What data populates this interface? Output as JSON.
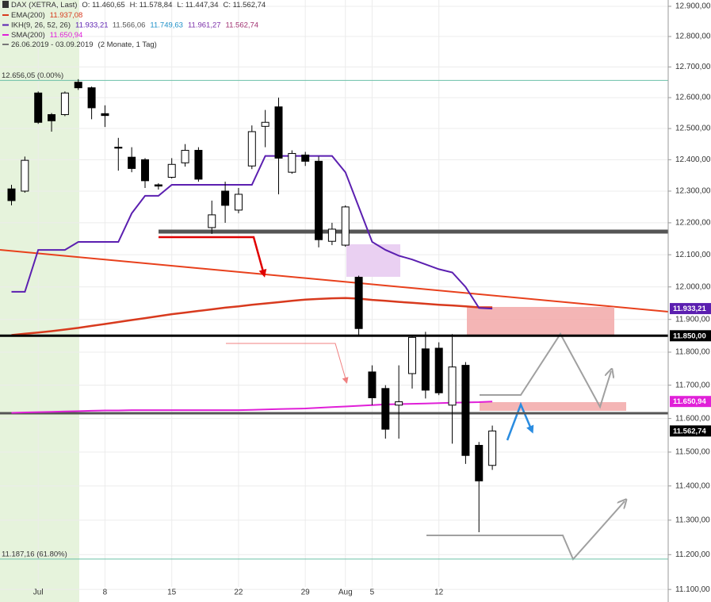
{
  "chart_data": {
    "type": "candlestick",
    "title": "DAX (XETRA, Last)",
    "quote": [
      "O: 11.460,65",
      "H: 11.578,84",
      "L: 11.447,34",
      "C: 11.562,74"
    ],
    "date_range": "26.06.2019 - 03.09.2019",
    "period": "(2 Monate, 1 Tag)",
    "log_scale": true,
    "grid": true,
    "up_color": "#ffffff",
    "down_color": "#000000",
    "categories": [
      null,
      null,
      "Jul",
      null,
      null,
      null,
      null,
      "8",
      null,
      null,
      null,
      null,
      "15",
      null,
      null,
      null,
      null,
      "22",
      null,
      null,
      null,
      null,
      "29",
      null,
      null,
      "Aug",
      null,
      "5",
      null,
      null,
      null,
      null,
      "12",
      null,
      null,
      null,
      null
    ],
    "open": [
      12307,
      12300,
      12615,
      12545,
      12545,
      12650,
      12632,
      12548,
      12440,
      12408,
      12400,
      12320,
      12344,
      12390,
      12430,
      12185,
      12300,
      12240,
      12380,
      12507,
      12570,
      12360,
      12415,
      12395,
      12142,
      12130,
      12030,
      11740,
      11690,
      11640,
      11735,
      11810,
      11812,
      11640,
      11760,
      11520,
      11460.65
    ],
    "high": [
      12320,
      12410,
      12620,
      12550,
      12620,
      12660,
      12636,
      12575,
      12470,
      12440,
      12405,
      12325,
      12405,
      12450,
      12440,
      12270,
      12330,
      12310,
      12510,
      12560,
      12600,
      12430,
      12425,
      12410,
      12200,
      12255,
      12035,
      11760,
      11700,
      11760,
      11850,
      11862,
      11830,
      11855,
      11770,
      11530,
      11578.84
    ],
    "low": [
      12255,
      12295,
      12515,
      12490,
      12540,
      12625,
      12530,
      12505,
      12365,
      12360,
      12310,
      12305,
      12340,
      12378,
      12330,
      12165,
      12200,
      12230,
      12370,
      12440,
      12290,
      12355,
      12380,
      12123,
      12130,
      12125,
      11850,
      11640,
      11540,
      11540,
      11690,
      11660,
      11670,
      11525,
      11465,
      11265,
      11447.34
    ],
    "close": [
      12270,
      12398,
      12520,
      12525,
      12615,
      12632,
      12567,
      12542,
      12437,
      12372,
      12333,
      12316,
      12385,
      12430,
      12338,
      12225,
      12255,
      12290,
      12490,
      12520,
      12405,
      12420,
      12395,
      12147,
      12180,
      12250,
      11872,
      11662,
      11568,
      11650,
      11845,
      11685,
      11677,
      11755,
      11490,
      11415,
      11562.74
    ],
    "series": [
      {
        "name": "EMA(200)",
        "color": "#d83a1e",
        "width": 2.5,
        "legend_values": [
          {
            "text": "11.937,08",
            "color": "#d83a1e"
          }
        ],
        "values": [
          11852,
          11856,
          11860,
          11864,
          11869,
          11874,
          11880,
          11886,
          11892,
          11898,
          11904,
          11910,
          11916,
          11921,
          11926,
          11931,
          11936,
          11940,
          11945,
          11949,
          11953,
          11957,
          11961,
          11963,
          11965,
          11966,
          11964,
          11960,
          11957,
          11954,
          11951,
          11948,
          11945,
          11943,
          11940,
          11937,
          11937.08
        ]
      },
      {
        "name": "IKH(9, 26, 52, 26)",
        "color": "#5b1fb0",
        "width": 2,
        "legend_values": [
          {
            "text": "11.933,21",
            "color": "#5b1fb0"
          },
          {
            "text": "11.566,06",
            "color": "#555555"
          },
          {
            "text": "11.749,63",
            "color": "#1e90c8"
          },
          {
            "text": "11.961,27",
            "color": "#7b2fa8"
          },
          {
            "text": "11.562,74",
            "color": "#a03070"
          }
        ],
        "values": [
          11985,
          11985,
          12115,
          12115,
          12115,
          12140,
          12140,
          12140,
          12140,
          12230,
          12285,
          12285,
          12320,
          12320,
          12320,
          12320,
          12320,
          12320,
          12320,
          12412,
          12412,
          12412,
          12412,
          12412,
          12412,
          12360,
          12250,
          12140,
          12115,
          12097,
          12085,
          12070,
          12055,
          12045,
          12000,
          11935,
          11933.21
        ]
      },
      {
        "name": "SMA(200)",
        "color": "#e020d8",
        "width": 2,
        "legend_values": [
          {
            "text": "11.650,94",
            "color": "#e020d8"
          }
        ],
        "values": [
          11617,
          11618,
          11619,
          11620,
          11621,
          11622,
          11623,
          11624,
          11624,
          11625,
          11625,
          11625,
          11625,
          11625,
          11625,
          11625,
          11625,
          11625,
          11626,
          11627,
          11628,
          11629,
          11630,
          11632,
          11634,
          11636,
          11638,
          11640,
          11642,
          11643,
          11644,
          11645,
          11646,
          11647,
          11648,
          11649,
          11650.94
        ]
      }
    ],
    "levels": [
      {
        "value": 12656.05,
        "label": "12.656,05 (0.00%)",
        "color": "#6cc0a8"
      },
      {
        "value": 11187.16,
        "label": "11.187,16 (61.80%)",
        "color": "#6cc0a8"
      }
    ],
    "price_labels": [
      {
        "value": 11933.21,
        "label": "11.933,21",
        "color": "#5b1fb0"
      },
      {
        "value": 11850,
        "label": "11.850,00",
        "color": "#000000"
      },
      {
        "value": 11650.94,
        "label": "11.650,94",
        "color": "#e020d8"
      },
      {
        "value": 11562.74,
        "label": "11.562,74",
        "color": "#000000"
      }
    ],
    "ylim": [
      11080,
      12921
    ],
    "yticks": [
      {
        "value": 11100,
        "label": "11.100,00"
      },
      {
        "value": 11200,
        "label": "11.200,00"
      },
      {
        "value": 11300,
        "label": "11.300,00"
      },
      {
        "value": 11400,
        "label": "11.400,00"
      },
      {
        "value": 11500,
        "label": "11.500,00"
      },
      {
        "value": 11600,
        "label": "11.600,00"
      },
      {
        "value": 11700,
        "label": "11.700,00"
      },
      {
        "value": 11800,
        "label": "11.800,00"
      },
      {
        "value": 11900,
        "label": "11.900,00"
      },
      {
        "value": 12000,
        "label": "12.000,00"
      },
      {
        "value": 12100,
        "label": "12.100,00"
      },
      {
        "value": 12200,
        "label": "12.200,00"
      },
      {
        "value": 12300,
        "label": "12.300,00"
      },
      {
        "value": 12400,
        "label": "12.400,00"
      },
      {
        "value": 12500,
        "label": "12.500,00"
      },
      {
        "value": 12600,
        "label": "12.600,00"
      },
      {
        "value": 12700,
        "label": "12.700,00"
      },
      {
        "value": 12800,
        "label": "12.800,00"
      },
      {
        "value": 12900,
        "label": "12.900,00"
      }
    ]
  }
}
